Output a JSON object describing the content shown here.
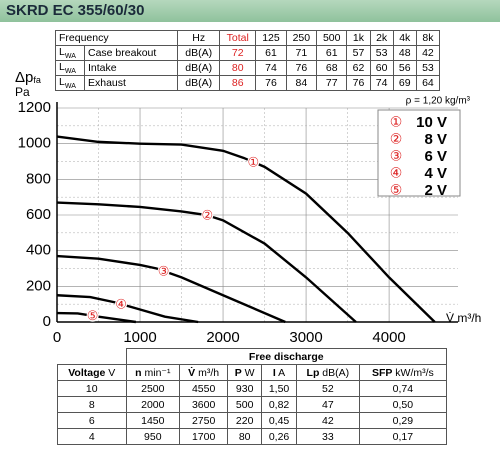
{
  "header": {
    "title": "SKRD EC 355/60/30"
  },
  "top_table": {
    "head": [
      "Frequency",
      "Hz",
      "Total",
      "125",
      "250",
      "500",
      "1k",
      "2k",
      "4k",
      "8k"
    ],
    "rows": [
      {
        "symbol": "L",
        "sub": "WA",
        "name": "Case breakout",
        "unit": "dB(A)",
        "values": [
          72,
          61,
          71,
          61,
          57,
          53,
          48,
          42
        ]
      },
      {
        "symbol": "L",
        "sub": "WA",
        "name": "Intake",
        "unit": "dB(A)",
        "values": [
          80,
          74,
          76,
          68,
          62,
          60,
          56,
          53
        ]
      },
      {
        "symbol": "L",
        "sub": "WA",
        "name": "Exhaust",
        "unit": "dB(A)",
        "values": [
          86,
          76,
          84,
          77,
          76,
          74,
          69,
          64
        ]
      }
    ]
  },
  "chart_data": {
    "type": "line",
    "y_label": "Δp",
    "y_label_sub": "fa",
    "y_unit": "Pa",
    "x_label": "V̇ m³/h",
    "note": "ρ = 1,20 kg/m³",
    "xlim": [
      0,
      4830
    ],
    "ylim": [
      0,
      1200
    ],
    "xticks": [
      0,
      1000,
      2000,
      3000,
      4000
    ],
    "yticks": [
      0,
      200,
      400,
      600,
      800,
      1000,
      1200
    ],
    "grid": true,
    "series": [
      {
        "name": "10 V",
        "marker": "①",
        "color": "#000000",
        "x": [
          0,
          500,
          1000,
          1500,
          2000,
          2250,
          2500,
          3000,
          3500,
          4000,
          4550
        ],
        "y": [
          1040,
          1010,
          1000,
          995,
          960,
          920,
          870,
          720,
          500,
          250,
          0
        ]
      },
      {
        "name": "8 V",
        "marker": "②",
        "color": "#000000",
        "x": [
          0,
          500,
          1000,
          1500,
          1800,
          2000,
          2500,
          3000,
          3600
        ],
        "y": [
          670,
          660,
          645,
          620,
          600,
          570,
          440,
          250,
          0
        ]
      },
      {
        "name": "6 V",
        "marker": "③",
        "color": "#000000",
        "x": [
          0,
          500,
          1000,
          1200,
          1500,
          2000,
          2750
        ],
        "y": [
          370,
          355,
          320,
          300,
          250,
          150,
          0
        ]
      },
      {
        "name": "4 V",
        "marker": "④",
        "color": "#000000",
        "x": [
          0,
          400,
          700,
          1000,
          1300,
          1700
        ],
        "y": [
          150,
          140,
          110,
          70,
          30,
          0
        ]
      },
      {
        "name": "2 V",
        "marker": "⑤",
        "color": "#000000",
        "x": [
          0,
          250,
          500,
          800,
          950
        ],
        "y": [
          50,
          48,
          30,
          10,
          0
        ]
      }
    ]
  },
  "bottom_table": {
    "group": "Free discharge",
    "head": [
      {
        "name": "Voltage",
        "unit": "V"
      },
      {
        "name": "n",
        "unit": "min⁻¹"
      },
      {
        "name": "V̇",
        "unit": "m³/h"
      },
      {
        "name": "P",
        "unit": "W"
      },
      {
        "name": "I",
        "unit": "A"
      },
      {
        "name": "Lp",
        "unit": "dB(A)"
      },
      {
        "name": "SFP",
        "unit": "kW/m³/s"
      }
    ],
    "rows": [
      [
        10,
        2500,
        4550,
        930,
        "1,50",
        52,
        "0,74"
      ],
      [
        8,
        2000,
        3600,
        500,
        "0,82",
        47,
        "0,50"
      ],
      [
        6,
        1450,
        2750,
        220,
        "0,45",
        42,
        "0,29"
      ],
      [
        4,
        950,
        1700,
        80,
        "0,26",
        33,
        "0,17"
      ]
    ]
  }
}
